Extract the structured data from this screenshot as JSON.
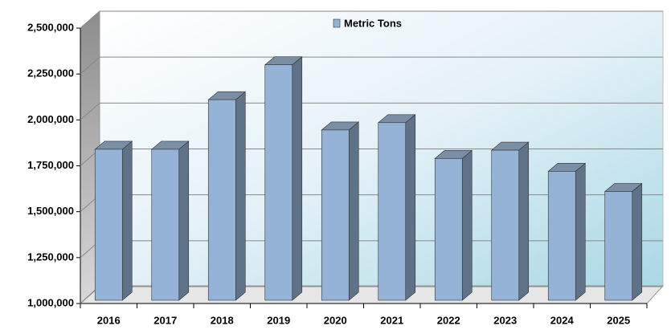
{
  "chart_data": {
    "type": "bar3d",
    "categories": [
      "2016",
      "2017",
      "2018",
      "2019",
      "2020",
      "2021",
      "2022",
      "2023",
      "2024",
      "2025"
    ],
    "series": [
      {
        "name": "Metric Tons",
        "color": "#95b3d7",
        "values": [
          1840000,
          1840000,
          2110000,
          2300000,
          1945000,
          1985000,
          1790000,
          1835000,
          1720000,
          1610000
        ]
      }
    ],
    "ylim": [
      1000000,
      2500000
    ],
    "yticks": [
      {
        "value": 1000000,
        "label": "1,000,000"
      },
      {
        "value": 1250000,
        "label": "1,250,000"
      },
      {
        "value": 1500000,
        "label": "1,500,000"
      },
      {
        "value": 1750000,
        "label": "1,750,000"
      },
      {
        "value": 2000000,
        "label": "2,000,000"
      },
      {
        "value": 2250000,
        "label": "2,250,000"
      },
      {
        "value": 2500000,
        "label": "2,500,000"
      }
    ],
    "grid": true,
    "legend": "top"
  }
}
